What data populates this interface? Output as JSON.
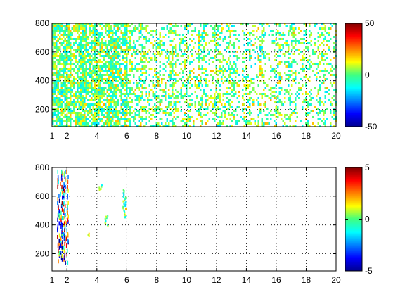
{
  "chart_data": [
    {
      "type": "heatmap",
      "title": "",
      "xlabel": "",
      "ylabel": "",
      "xlim": [
        1,
        20
      ],
      "ylim": [
        80,
        800
      ],
      "xticks": [
        1,
        2,
        4,
        6,
        8,
        10,
        12,
        14,
        16,
        18,
        20
      ],
      "yticks": [
        200,
        400,
        600,
        800
      ],
      "grid": true,
      "colormap": "jet",
      "clim": [
        -50,
        50
      ],
      "colorbar_ticks": [
        -50,
        0,
        50
      ],
      "pattern": {
        "description_values": "mostly near-zero values (green-cyan-yellow) with sparse white gaps; dense for x<6, sparser toward 20",
        "dense_region_x": [
          1,
          6
        ],
        "value_range_observed": [
          -15,
          15
        ]
      }
    },
    {
      "type": "heatmap",
      "title": "",
      "xlabel": "",
      "ylabel": "",
      "xlim": [
        1,
        20
      ],
      "ylim": [
        80,
        800
      ],
      "xticks": [
        1,
        2,
        4,
        6,
        8,
        10,
        12,
        14,
        16,
        18,
        20
      ],
      "yticks": [
        200,
        400,
        600,
        800
      ],
      "grid": true,
      "colormap": "jet",
      "clim": [
        -5,
        5
      ],
      "colorbar_ticks": [
        -5,
        0,
        5
      ],
      "pattern": {
        "description_values": "very sparse; vertical streaks near x=1.4-2.0 spanning y 150-790, small patches near x 4-5 and x 6",
        "streak_x": [
          1.4,
          1.6,
          1.8,
          2.0
        ],
        "patches": [
          {
            "x": 4.2,
            "y": [
              650,
              690
            ]
          },
          {
            "x": 4.6,
            "y": [
              400,
              480
            ]
          },
          {
            "x": 5.8,
            "y": [
              460,
              660
            ]
          },
          {
            "x": 3.4,
            "y": [
              330,
              350
            ]
          }
        ]
      }
    }
  ]
}
